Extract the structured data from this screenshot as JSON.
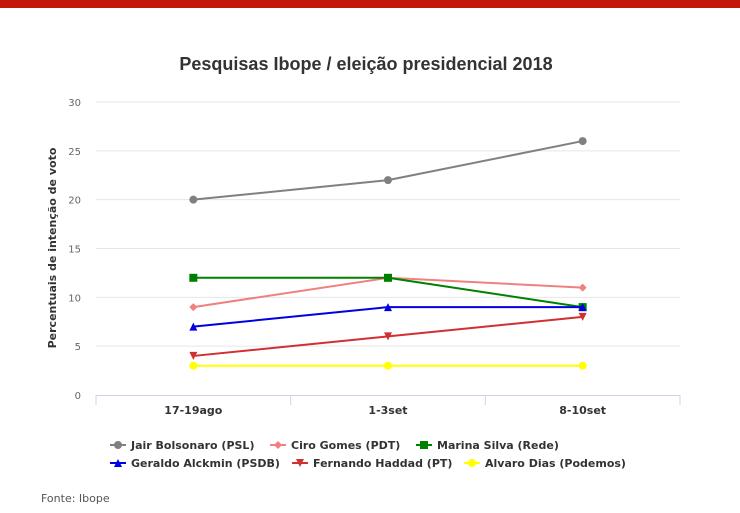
{
  "source": "Fonte: Ibope",
  "chart_data": {
    "type": "line",
    "title": "Pesquisas Ibope / eleição presidencial 2018",
    "xlabel": "",
    "ylabel": "Percentuais de intenção de voto",
    "categories": [
      "17-19ago",
      "1-3set",
      "8-10set"
    ],
    "ylim": [
      0,
      30
    ],
    "yticks": [
      0,
      5,
      10,
      15,
      20,
      25,
      30
    ],
    "grid": true,
    "legend": "bottom",
    "series": [
      {
        "name": "Jair Bolsonaro (PSL)",
        "color": "#808080",
        "marker": "circle",
        "values": [
          20,
          22,
          26
        ]
      },
      {
        "name": "Ciro Gomes (PDT)",
        "color": "#f08080",
        "marker": "diamond",
        "values": [
          9,
          12,
          11
        ]
      },
      {
        "name": "Marina Silva (Rede)",
        "color": "#008000",
        "marker": "square",
        "values": [
          12,
          12,
          9
        ]
      },
      {
        "name": "Geraldo Alckmin (PSDB)",
        "color": "#0000e0",
        "marker": "triangle",
        "values": [
          7,
          9,
          9
        ]
      },
      {
        "name": "Fernando Haddad (PT)",
        "color": "#d03030",
        "marker": "triangle-down",
        "values": [
          4,
          6,
          8
        ]
      },
      {
        "name": "Alvaro Dias (Podemos)",
        "color": "#ffff00",
        "marker": "circle",
        "values": [
          3,
          3,
          3
        ]
      }
    ]
  }
}
